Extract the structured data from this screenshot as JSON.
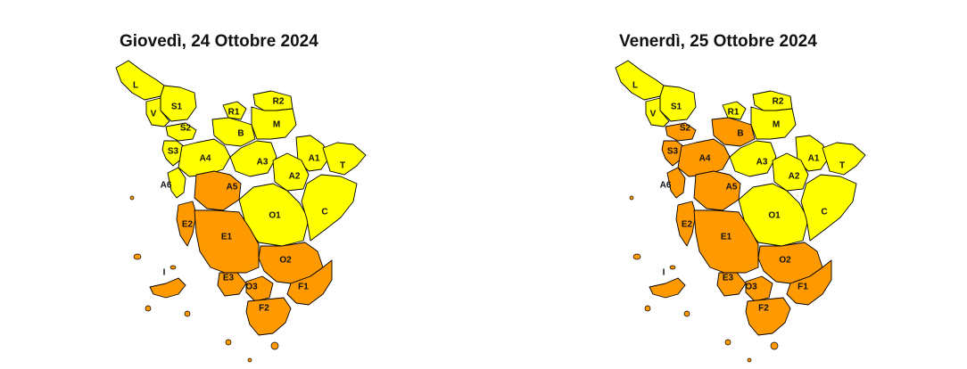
{
  "colors": {
    "yellow": "#ffff00",
    "orange": "#ff9900"
  },
  "maps": [
    {
      "title": "Giovedì, 24 Ottobre 2024",
      "zones": [
        {
          "label": "L",
          "level": "yellow"
        },
        {
          "label": "S1",
          "level": "yellow"
        },
        {
          "label": "V",
          "level": "yellow"
        },
        {
          "label": "R1",
          "level": "yellow"
        },
        {
          "label": "R2",
          "level": "yellow"
        },
        {
          "label": "S2",
          "level": "yellow"
        },
        {
          "label": "B",
          "level": "yellow"
        },
        {
          "label": "M",
          "level": "yellow"
        },
        {
          "label": "S3",
          "level": "yellow"
        },
        {
          "label": "A4",
          "level": "yellow"
        },
        {
          "label": "A3",
          "level": "yellow"
        },
        {
          "label": "A1",
          "level": "yellow"
        },
        {
          "label": "T",
          "level": "yellow"
        },
        {
          "label": "A6",
          "level": "yellow"
        },
        {
          "label": "A5",
          "level": "orange"
        },
        {
          "label": "A2",
          "level": "yellow"
        },
        {
          "label": "O1",
          "level": "yellow"
        },
        {
          "label": "C",
          "level": "yellow"
        },
        {
          "label": "E2",
          "level": "orange"
        },
        {
          "label": "E1",
          "level": "orange"
        },
        {
          "label": "O2",
          "level": "orange"
        },
        {
          "label": "I",
          "level": "orange"
        },
        {
          "label": "E3",
          "level": "orange"
        },
        {
          "label": "O3",
          "level": "orange"
        },
        {
          "label": "F1",
          "level": "orange"
        },
        {
          "label": "F2",
          "level": "orange"
        }
      ]
    },
    {
      "title": "Venerdì, 25 Ottobre 2024",
      "zones": [
        {
          "label": "L",
          "level": "yellow"
        },
        {
          "label": "S1",
          "level": "yellow"
        },
        {
          "label": "V",
          "level": "yellow"
        },
        {
          "label": "R1",
          "level": "yellow"
        },
        {
          "label": "R2",
          "level": "yellow"
        },
        {
          "label": "S2",
          "level": "orange"
        },
        {
          "label": "B",
          "level": "orange"
        },
        {
          "label": "M",
          "level": "yellow"
        },
        {
          "label": "S3",
          "level": "orange"
        },
        {
          "label": "A4",
          "level": "orange"
        },
        {
          "label": "A3",
          "level": "yellow"
        },
        {
          "label": "A1",
          "level": "yellow"
        },
        {
          "label": "T",
          "level": "yellow"
        },
        {
          "label": "A6",
          "level": "orange"
        },
        {
          "label": "A5",
          "level": "orange"
        },
        {
          "label": "A2",
          "level": "yellow"
        },
        {
          "label": "O1",
          "level": "yellow"
        },
        {
          "label": "C",
          "level": "yellow"
        },
        {
          "label": "E2",
          "level": "orange"
        },
        {
          "label": "E1",
          "level": "orange"
        },
        {
          "label": "O2",
          "level": "orange"
        },
        {
          "label": "I",
          "level": "orange"
        },
        {
          "label": "E3",
          "level": "orange"
        },
        {
          "label": "O3",
          "level": "orange"
        },
        {
          "label": "F1",
          "level": "orange"
        },
        {
          "label": "F2",
          "level": "orange"
        }
      ]
    }
  ]
}
